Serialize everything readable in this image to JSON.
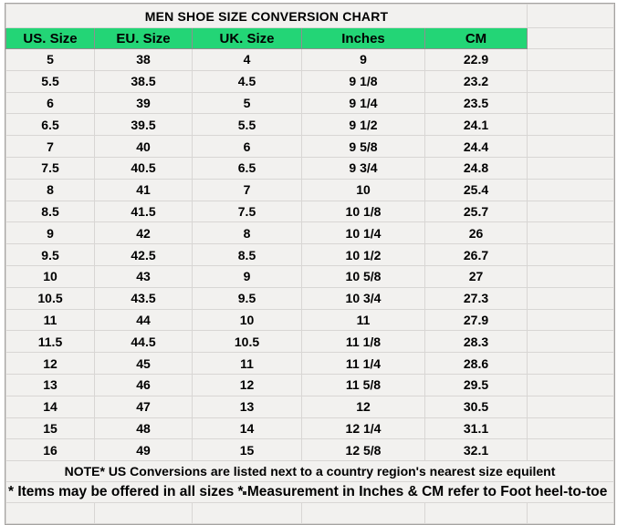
{
  "chart_data": {
    "type": "table",
    "title": "MEN SHOE SIZE CONVERSION CHART",
    "columns": [
      "US. Size",
      "EU. Size",
      "UK. Size",
      "Inches",
      "CM"
    ],
    "rows": [
      [
        "5",
        "38",
        "4",
        "9",
        "22.9"
      ],
      [
        "5.5",
        "38.5",
        "4.5",
        "9 1/8",
        "23.2"
      ],
      [
        "6",
        "39",
        "5",
        "9 1/4",
        "23.5"
      ],
      [
        "6.5",
        "39.5",
        "5.5",
        "9 1/2",
        "24.1"
      ],
      [
        "7",
        "40",
        "6",
        "9 5/8",
        "24.4"
      ],
      [
        "7.5",
        "40.5",
        "6.5",
        "9 3/4",
        "24.8"
      ],
      [
        "8",
        "41",
        "7",
        "10",
        "25.4"
      ],
      [
        "8.5",
        "41.5",
        "7.5",
        "10 1/8",
        "25.7"
      ],
      [
        "9",
        "42",
        "8",
        "10 1/4",
        "26"
      ],
      [
        "9.5",
        "42.5",
        "8.5",
        "10 1/2",
        "26.7"
      ],
      [
        "10",
        "43",
        "9",
        "10 5/8",
        "27"
      ],
      [
        "10.5",
        "43.5",
        "9.5",
        "10 3/4",
        "27.3"
      ],
      [
        "11",
        "44",
        "10",
        "11",
        "27.9"
      ],
      [
        "11.5",
        "44.5",
        "10.5",
        "11 1/8",
        "28.3"
      ],
      [
        "12",
        "45",
        "11",
        "11 1/4",
        "28.6"
      ],
      [
        "13",
        "46",
        "12",
        "11 5/8",
        "29.5"
      ],
      [
        "14",
        "47",
        "13",
        "12",
        "30.5"
      ],
      [
        "15",
        "48",
        "14",
        "12 1/4",
        "31.1"
      ],
      [
        "16",
        "49",
        "15",
        "12 5/8",
        "32.1"
      ]
    ]
  },
  "notes": {
    "line1": "NOTE* US Conversions are listed next to a country region's nearest size equilent",
    "line2": "* Items may be offered in all sizes * Measurement in Inches & CM refer to Foot heel-to-toe"
  },
  "colors": {
    "accent_green": "#23d576",
    "title_text_green": "#23d576",
    "cell_background": "#f2f1ef",
    "grid_line": "#d8d6d4",
    "outer_border": "#a5a3a1",
    "text": "#000000"
  }
}
